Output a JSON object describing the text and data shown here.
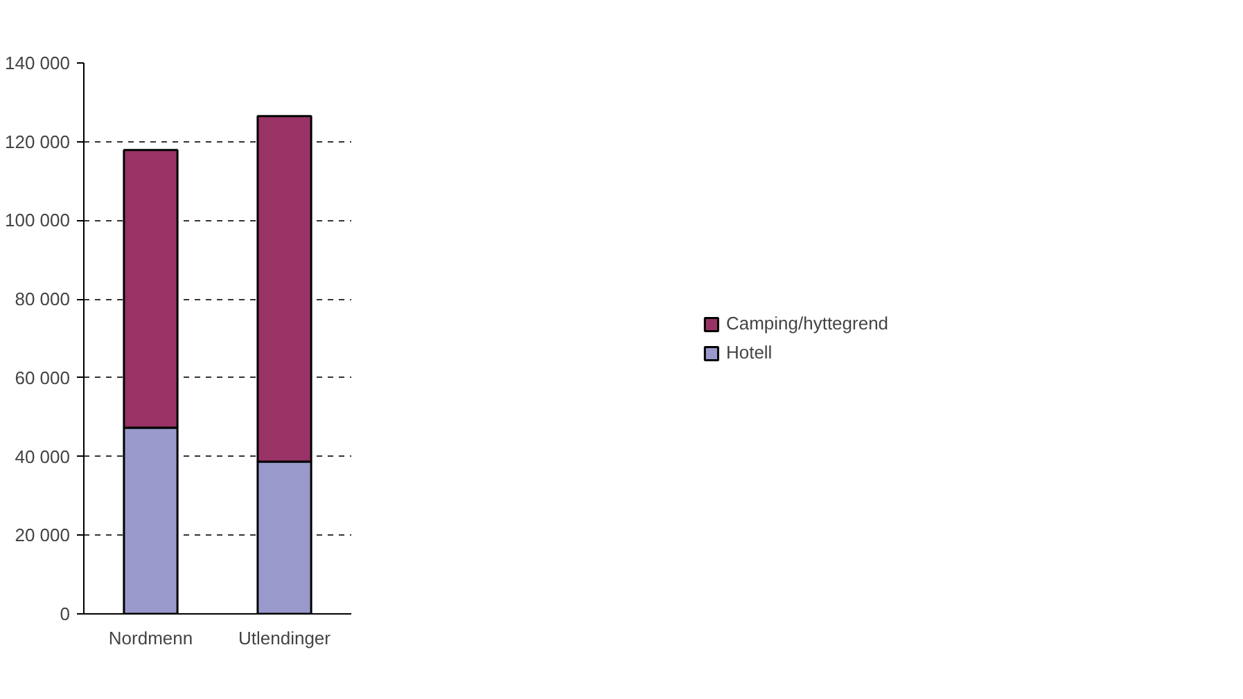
{
  "chart_data": {
    "type": "bar",
    "stacked": true,
    "categories": [
      "Nordmenn",
      "Utlendinger"
    ],
    "series": [
      {
        "name": "Hotell",
        "color": "#9999cc",
        "values": [
          47300,
          38700
        ]
      },
      {
        "name": "Camping/hyttegrend",
        "color": "#993366",
        "values": [
          70600,
          87800
        ]
      }
    ],
    "ylim": [
      0,
      140000
    ],
    "yticks": [
      {
        "value": 0,
        "label": "0"
      },
      {
        "value": 20000,
        "label": "20 000"
      },
      {
        "value": 40000,
        "label": "40 000"
      },
      {
        "value": 60000,
        "label": "60 000"
      },
      {
        "value": 80000,
        "label": "80 000"
      },
      {
        "value": 100000,
        "label": "100 000"
      },
      {
        "value": 120000,
        "label": "120 000"
      },
      {
        "value": 140000,
        "label": "140 000"
      }
    ],
    "grid": "y",
    "legend": "right"
  }
}
